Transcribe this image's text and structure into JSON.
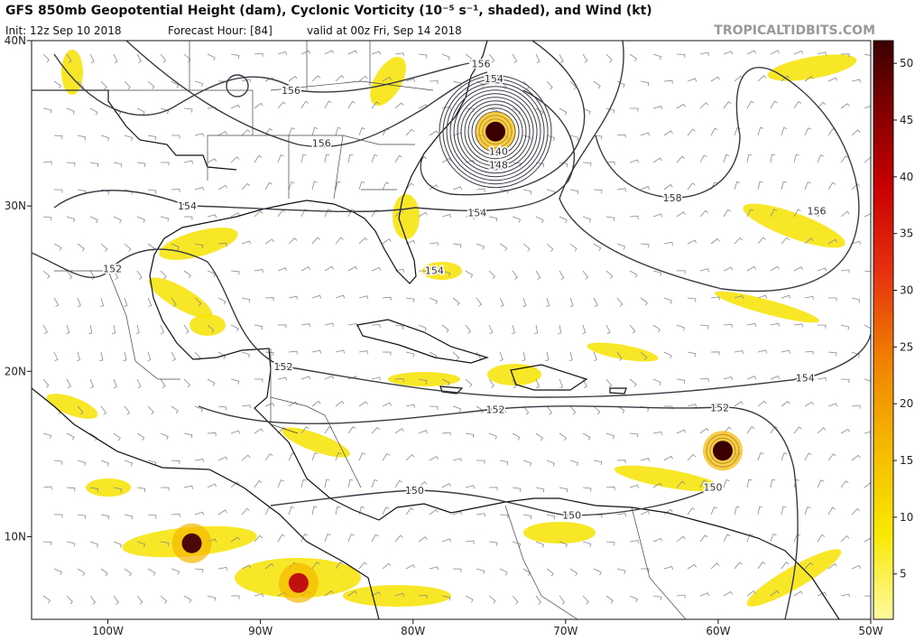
{
  "header": {
    "title": "GFS 850mb Geopotential Height (dam), Cyclonic Vorticity (10⁻⁵ s⁻¹, shaded), and Wind (kt)",
    "init": "Init: 12z Sep 10 2018",
    "forecast_hour": "Forecast Hour: [84]",
    "valid": "valid at 00z Fri, Sep 14 2018",
    "site": "TROPICALTIDBITS.COM"
  },
  "map": {
    "xlim": [
      -105,
      -50
    ],
    "ylim": [
      5,
      40
    ],
    "xticks": [
      {
        "value": -100,
        "label": "100W"
      },
      {
        "value": -90,
        "label": "90W"
      },
      {
        "value": -80,
        "label": "80W"
      },
      {
        "value": -70,
        "label": "70W"
      },
      {
        "value": -60,
        "label": "60W"
      },
      {
        "value": -50,
        "label": "50W"
      }
    ],
    "yticks": [
      {
        "value": 10,
        "label": "10N"
      },
      {
        "value": 20,
        "label": "20N"
      },
      {
        "value": 30,
        "label": "30N"
      },
      {
        "value": 40,
        "label": "40N"
      }
    ],
    "contour_labels": [
      {
        "value": 156,
        "lon": -75.55,
        "lat": 38.6
      },
      {
        "value": 154,
        "lon": -74.7,
        "lat": 37.7
      },
      {
        "value": 156,
        "lon": -88.0,
        "lat": 37.0
      },
      {
        "value": 156,
        "lon": -86.0,
        "lat": 33.8
      },
      {
        "value": 140,
        "lon": -74.4,
        "lat": 33.3
      },
      {
        "value": 148,
        "lon": -74.4,
        "lat": 32.5
      },
      {
        "value": 158,
        "lon": -63.0,
        "lat": 30.5
      },
      {
        "value": 154,
        "lon": -75.8,
        "lat": 29.6
      },
      {
        "value": 156,
        "lon": -53.55,
        "lat": 29.7
      },
      {
        "value": 154,
        "lon": -94.8,
        "lat": 30.0
      },
      {
        "value": 152,
        "lon": -99.7,
        "lat": 26.2
      },
      {
        "value": 154,
        "lon": -78.6,
        "lat": 26.1
      },
      {
        "value": 152,
        "lon": -88.5,
        "lat": 20.3
      },
      {
        "value": 154,
        "lon": -54.3,
        "lat": 19.6
      },
      {
        "value": 152,
        "lon": -74.6,
        "lat": 17.7
      },
      {
        "value": 152,
        "lon": -59.9,
        "lat": 17.8
      },
      {
        "value": 150,
        "lon": -79.9,
        "lat": 12.8
      },
      {
        "value": 150,
        "lon": -69.6,
        "lat": 11.3
      },
      {
        "value": 150,
        "lon": -60.35,
        "lat": 13.0
      }
    ],
    "vortices": [
      {
        "lon": -74.6,
        "lat": 34.5,
        "color": "#3a0000"
      },
      {
        "lon": -59.7,
        "lat": 15.2,
        "color": "#3a0000"
      },
      {
        "lon": -94.5,
        "lat": 9.6,
        "color": "#4a0808"
      },
      {
        "lon": -87.5,
        "lat": 7.2,
        "color": "#c01010"
      }
    ]
  },
  "colorbar": {
    "range": [
      1,
      52
    ],
    "ticks": [
      5,
      10,
      15,
      20,
      25,
      30,
      35,
      40,
      45,
      50
    ]
  }
}
